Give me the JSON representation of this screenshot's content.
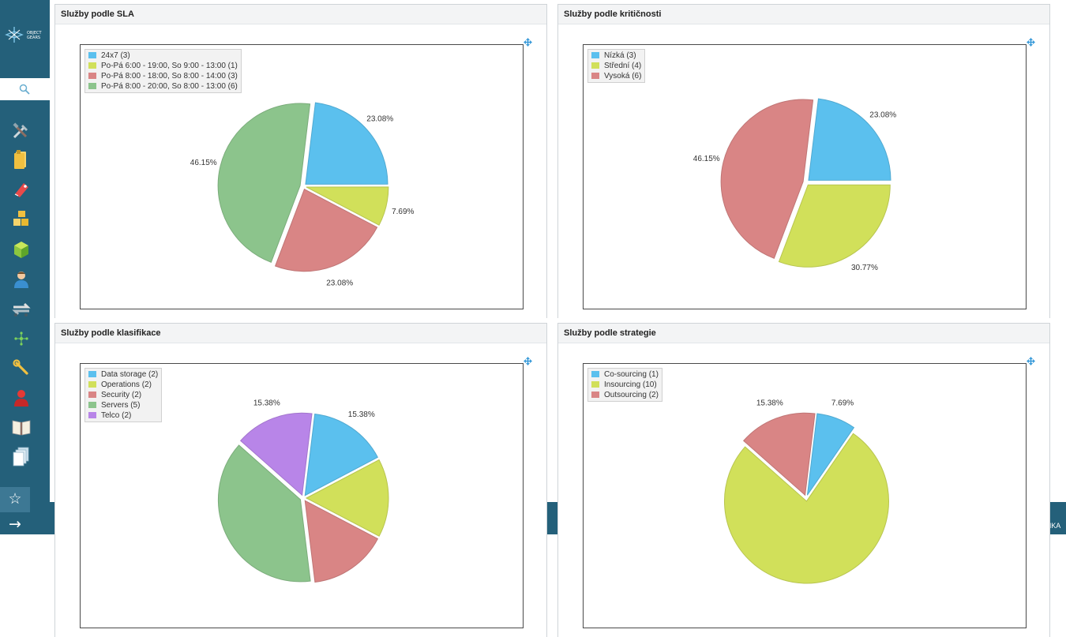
{
  "sidebar": {
    "logo_text": [
      "OBJECT",
      "GEARS"
    ],
    "items": [
      {
        "icon": "tools-icon"
      },
      {
        "icon": "folder-icon"
      },
      {
        "icon": "tag-icon"
      },
      {
        "icon": "boxes-icon"
      },
      {
        "icon": "cube-icon"
      },
      {
        "icon": "user-icon"
      },
      {
        "icon": "sync-icon"
      },
      {
        "icon": "network-icon"
      },
      {
        "icon": "wrench-icon"
      },
      {
        "icon": "person-icon"
      },
      {
        "icon": "book-icon"
      },
      {
        "icon": "documents-icon"
      }
    ],
    "star": "☆",
    "arrow": "→"
  },
  "bottom": {
    "page_button": "STRÁNKA"
  },
  "panels": [
    {
      "title": "Služby podle SLA",
      "chart_data": {
        "type": "pie",
        "title": "Služby podle SLA",
        "labels": [
          "24x7 (3)",
          "Po-Pá 6:00 - 19:00, So 9:00 - 13:00 (1)",
          "Po-Pá 8:00 - 18:00, So 8:00 - 14:00 (3)",
          "Po-Pá 8:00 - 20:00, So 8:00 - 13:00 (6)"
        ],
        "values": [
          3,
          1,
          3,
          6
        ],
        "percent_labels": [
          "23.08%",
          "7.69%",
          "23.08%",
          "46.15%"
        ],
        "colors": [
          "#5bc0ee",
          "#d1e05a",
          "#d98585",
          "#8cc48c"
        ],
        "legend": "top-left"
      }
    },
    {
      "title": "Služby podle kritičnosti",
      "chart_data": {
        "type": "pie",
        "title": "Služby podle kritičnosti",
        "labels": [
          "Nízká (3)",
          "Střední (4)",
          "Vysoká (6)"
        ],
        "values": [
          3,
          4,
          6
        ],
        "percent_labels": [
          "23.08%",
          "30.77%",
          "46.15%"
        ],
        "colors": [
          "#5bc0ee",
          "#d1e05a",
          "#d98585"
        ],
        "legend": "top-left"
      }
    },
    {
      "title": "Služby podle klasifikace",
      "chart_data": {
        "type": "pie",
        "title": "Služby podle klasifikace",
        "labels": [
          "Data storage (2)",
          "Operations (2)",
          "Security (2)",
          "Servers (5)",
          "Telco (2)"
        ],
        "values": [
          2,
          2,
          2,
          5,
          2
        ],
        "percent_labels": [
          "15.38%",
          "",
          "",
          "",
          "15.38%"
        ],
        "colors": [
          "#5bc0ee",
          "#d1e05a",
          "#d98585",
          "#8cc48c",
          "#b885e8"
        ],
        "legend": "top-left"
      }
    },
    {
      "title": "Služby podle strategie",
      "chart_data": {
        "type": "pie",
        "title": "Služby podle strategie",
        "labels": [
          "Co-sourcing (1)",
          "Insourcing (10)",
          "Outsourcing (2)"
        ],
        "values": [
          1,
          10,
          2
        ],
        "percent_labels": [
          "7.69%",
          "",
          "15.38%"
        ],
        "colors": [
          "#5bc0ee",
          "#d1e05a",
          "#d98585"
        ],
        "legend": "top-left"
      }
    }
  ]
}
